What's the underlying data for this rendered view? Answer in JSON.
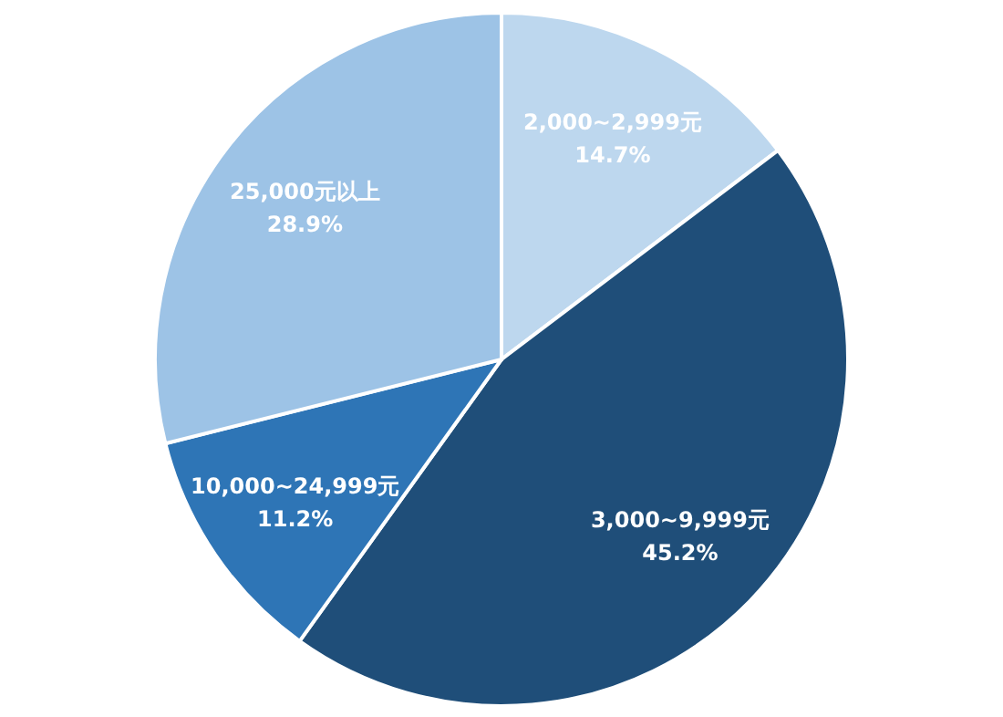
{
  "chart_data": {
    "type": "pie",
    "categories": [
      "2,000~2,999元",
      "3,000~9,999元",
      "10,000~24,999元",
      "25,000元以上"
    ],
    "values": [
      14.7,
      45.2,
      11.2,
      28.9
    ],
    "colors": [
      "#bdd7ee",
      "#1f4e79",
      "#2e75b6",
      "#9dc3e6"
    ],
    "value_labels": [
      "14.7%",
      "45.2%",
      "11.2%",
      "28.9%"
    ]
  }
}
